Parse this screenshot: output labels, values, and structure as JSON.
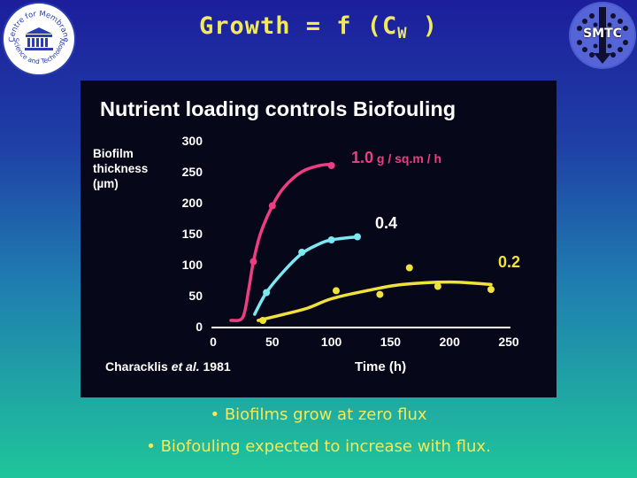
{
  "slide": {
    "title_main": "Growth = f (C",
    "title_sub": "W",
    "title_end": " )",
    "bullets": [
      "• Biofilms grow at zero flux",
      "• Biofouling expected to increase with flux."
    ]
  },
  "logos": {
    "left": {
      "arc_top": "Centre for Membrane",
      "arc_bottom": "Science and Technology"
    },
    "right": {
      "label": "SMTC"
    }
  },
  "colors": {
    "background_top": "#1c1e9c",
    "background_bottom": "#1fc59a",
    "title": "#f2ea5a",
    "bullet_text": "#f2ea5a",
    "photo_background": "#07071a",
    "series_1_0": "#ee3e82",
    "series_0_4": "#7ee8f2",
    "series_0_2": "#f0e23a"
  },
  "chart_data": {
    "type": "line",
    "title": "Nutrient loading controls Biofouling",
    "ylabel": [
      "Biofilm",
      "thickness",
      "(µm)"
    ],
    "xlabel": "Time  (h)",
    "citation": {
      "authors": "Characklis ",
      "etal": "et al.",
      "year": " 1981"
    },
    "xlim": [
      0,
      250
    ],
    "ylim": [
      0,
      300
    ],
    "xticks": [
      "0",
      "50",
      "100",
      "150",
      "200",
      "250"
    ],
    "yticks": [
      "0",
      "50",
      "100",
      "150",
      "200",
      "250",
      "300"
    ],
    "grid": false,
    "series": [
      {
        "name": "1.0 g / sq.m / h",
        "color": "#ee3e82",
        "points": [
          [
            34,
            105
          ],
          [
            50,
            195
          ],
          [
            100,
            260
          ]
        ],
        "curve": [
          [
            15,
            10
          ],
          [
            25,
            15
          ],
          [
            30,
            60
          ],
          [
            34,
            105
          ],
          [
            40,
            150
          ],
          [
            50,
            195
          ],
          [
            60,
            225
          ],
          [
            75,
            250
          ],
          [
            90,
            260
          ],
          [
            100,
            262
          ]
        ]
      },
      {
        "name": "0.4",
        "color": "#7ee8f2",
        "points": [
          [
            45,
            55
          ],
          [
            75,
            120
          ],
          [
            100,
            140
          ],
          [
            122,
            145
          ]
        ],
        "curve": [
          [
            35,
            20
          ],
          [
            45,
            55
          ],
          [
            60,
            90
          ],
          [
            75,
            118
          ],
          [
            88,
            132
          ],
          [
            100,
            140
          ],
          [
            122,
            145
          ]
        ]
      },
      {
        "name": "0.2",
        "color": "#f0e23a",
        "points": [
          [
            42,
            10
          ],
          [
            104,
            58
          ],
          [
            141,
            52
          ],
          [
            166,
            95
          ],
          [
            190,
            65
          ],
          [
            235,
            60
          ]
        ],
        "curve": [
          [
            38,
            10
          ],
          [
            60,
            20
          ],
          [
            80,
            30
          ],
          [
            100,
            45
          ],
          [
            130,
            58
          ],
          [
            160,
            68
          ],
          [
            200,
            72
          ],
          [
            235,
            68
          ]
        ]
      }
    ]
  }
}
